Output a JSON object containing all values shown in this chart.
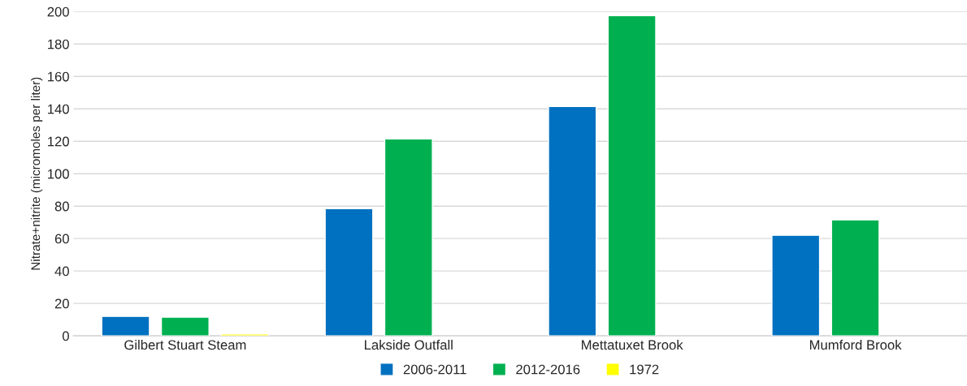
{
  "chart_data": {
    "type": "bar",
    "ylabel": "Nitrate+nitrite (micromoles per liter)",
    "categories": [
      "Gilbert Stuart Steam",
      "Lakside Outfall",
      "Mettatuxet Brook",
      "Mumford Brook"
    ],
    "series": [
      {
        "name": "2006-2011",
        "color": "#0070c0",
        "values": [
          12,
          78.5,
          141.5,
          62
        ]
      },
      {
        "name": "2012-2016",
        "color": "#00b050",
        "values": [
          11.5,
          121.5,
          197.5,
          71.5
        ]
      },
      {
        "name": "1972",
        "color": "#ffff00",
        "values": [
          1.2,
          null,
          null,
          null
        ]
      }
    ],
    "ylim": [
      0,
      200
    ],
    "yticks": [
      0,
      20,
      40,
      60,
      80,
      100,
      120,
      140,
      160,
      180,
      200
    ],
    "grid": "y",
    "legend": "bottom"
  }
}
